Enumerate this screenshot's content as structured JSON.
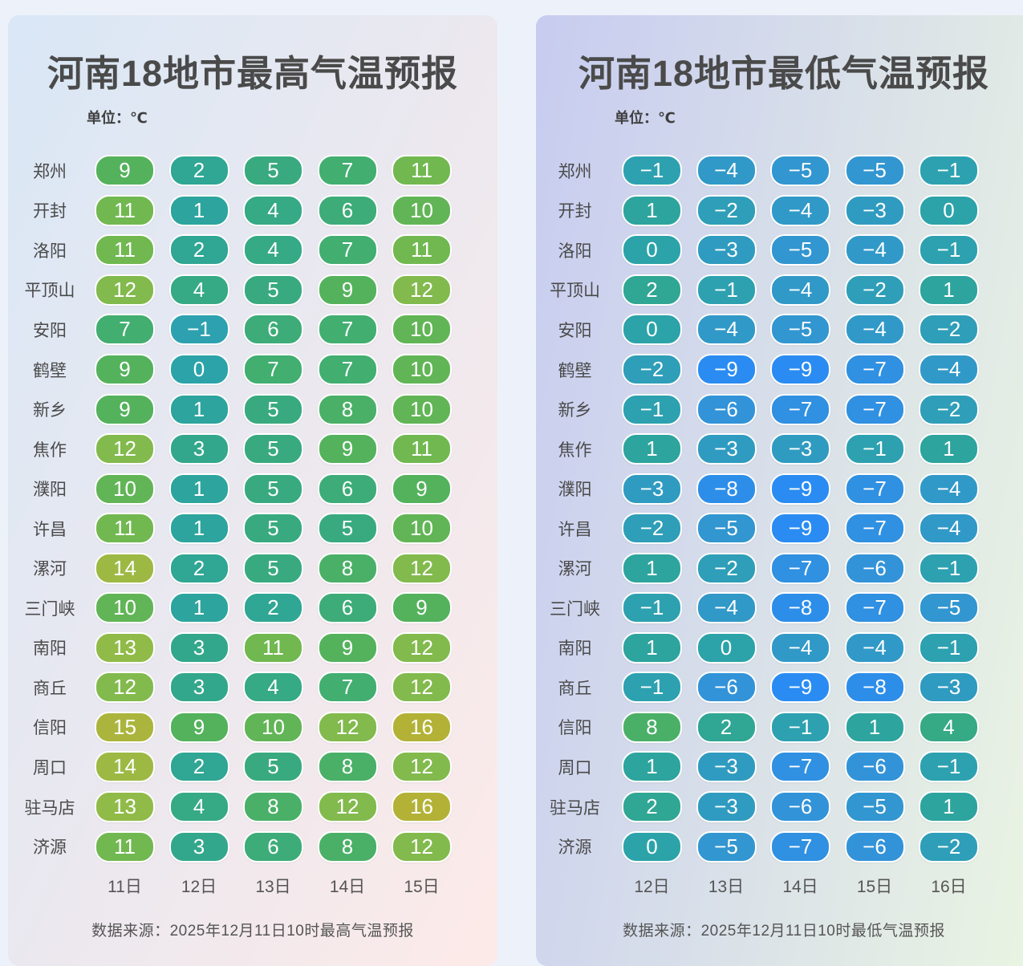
{
  "page_background": "#edf2fa",
  "text_colors": {
    "title": "#4a4a4a",
    "city_label": "#4a4a4a",
    "column_header": "#555555",
    "source": "#555555",
    "cell_value": "#ffffff"
  },
  "chart_data": [
    {
      "type": "heatmap",
      "title": "河南18地市最高气温预报",
      "unit_label": "单位：℃",
      "categories": [
        "11日",
        "12日",
        "13日",
        "14日",
        "15日"
      ],
      "series": [
        {
          "name": "郑州",
          "values": [
            9,
            2,
            5,
            7,
            11
          ]
        },
        {
          "name": "开封",
          "values": [
            11,
            1,
            4,
            6,
            10
          ]
        },
        {
          "name": "洛阳",
          "values": [
            11,
            2,
            4,
            7,
            11
          ]
        },
        {
          "name": "平顶山",
          "values": [
            12,
            4,
            5,
            9,
            12
          ]
        },
        {
          "name": "安阳",
          "values": [
            7,
            -1,
            6,
            7,
            10
          ]
        },
        {
          "name": "鹤壁",
          "values": [
            9,
            0,
            7,
            7,
            10
          ]
        },
        {
          "name": "新乡",
          "values": [
            9,
            1,
            5,
            8,
            10
          ]
        },
        {
          "name": "焦作",
          "values": [
            12,
            3,
            5,
            9,
            11
          ]
        },
        {
          "name": "濮阳",
          "values": [
            10,
            1,
            5,
            6,
            9
          ]
        },
        {
          "name": "许昌",
          "values": [
            11,
            1,
            5,
            5,
            10
          ]
        },
        {
          "name": "漯河",
          "values": [
            14,
            2,
            5,
            8,
            12
          ]
        },
        {
          "name": "三门峡",
          "values": [
            10,
            1,
            2,
            6,
            9
          ]
        },
        {
          "name": "南阳",
          "values": [
            13,
            3,
            11,
            9,
            12
          ]
        },
        {
          "name": "商丘",
          "values": [
            12,
            3,
            4,
            7,
            12
          ]
        },
        {
          "name": "信阳",
          "values": [
            15,
            9,
            10,
            12,
            16
          ]
        },
        {
          "name": "周口",
          "values": [
            14,
            2,
            5,
            8,
            12
          ]
        },
        {
          "name": "驻马店",
          "values": [
            13,
            4,
            8,
            12,
            16
          ]
        },
        {
          "name": "济源",
          "values": [
            11,
            3,
            6,
            8,
            12
          ]
        }
      ],
      "source": "数据来源：2025年12月11日10时最高气温预报",
      "gradient": {
        "angle": "115deg",
        "from": "#d9e7f6",
        "to": "#fdeae8"
      }
    },
    {
      "type": "heatmap",
      "title": "河南18地市最低气温预报",
      "unit_label": "单位：℃",
      "categories": [
        "12日",
        "13日",
        "14日",
        "15日",
        "16日"
      ],
      "series": [
        {
          "name": "郑州",
          "values": [
            -1,
            -4,
            -5,
            -5,
            -1
          ]
        },
        {
          "name": "开封",
          "values": [
            1,
            -2,
            -4,
            -3,
            0
          ]
        },
        {
          "name": "洛阳",
          "values": [
            0,
            -3,
            -5,
            -4,
            -1
          ]
        },
        {
          "name": "平顶山",
          "values": [
            2,
            -1,
            -4,
            -2,
            1
          ]
        },
        {
          "name": "安阳",
          "values": [
            0,
            -4,
            -5,
            -4,
            -2
          ]
        },
        {
          "name": "鹤壁",
          "values": [
            -2,
            -9,
            -9,
            -7,
            -4
          ]
        },
        {
          "name": "新乡",
          "values": [
            -1,
            -6,
            -7,
            -7,
            -2
          ]
        },
        {
          "name": "焦作",
          "values": [
            1,
            -3,
            -3,
            -1,
            1
          ]
        },
        {
          "name": "濮阳",
          "values": [
            -3,
            -8,
            -9,
            -7,
            -4
          ]
        },
        {
          "name": "许昌",
          "values": [
            -2,
            -5,
            -9,
            -7,
            -4
          ]
        },
        {
          "name": "漯河",
          "values": [
            1,
            -2,
            -7,
            -6,
            -1
          ]
        },
        {
          "name": "三门峡",
          "values": [
            -1,
            -4,
            -8,
            -7,
            -5
          ]
        },
        {
          "name": "南阳",
          "values": [
            1,
            0,
            -4,
            -4,
            -1
          ]
        },
        {
          "name": "商丘",
          "values": [
            -1,
            -6,
            -9,
            -8,
            -3
          ]
        },
        {
          "name": "信阳",
          "values": [
            8,
            2,
            -1,
            1,
            4
          ]
        },
        {
          "name": "周口",
          "values": [
            1,
            -3,
            -7,
            -6,
            -1
          ]
        },
        {
          "name": "驻马店",
          "values": [
            2,
            -3,
            -6,
            -5,
            1
          ]
        },
        {
          "name": "济源",
          "values": [
            0,
            -5,
            -7,
            -6,
            -2
          ]
        }
      ],
      "source": "数据来源：2025年12月11日10时最低气温预报",
      "gradient": {
        "angle": "100deg",
        "from": "#c7ccf0",
        "to": "#eaf4e2"
      }
    }
  ],
  "color_scale": {
    "-9": "#2a8cf2",
    "-8": "#2d8eea",
    "-7": "#3090e1",
    "-6": "#3293d9",
    "-5": "#3296d0",
    "-4": "#3199c8",
    "-3": "#309bc0",
    "-2": "#2f9eb8",
    "-1": "#2da1b0",
    "0": "#2ba3a9",
    "1": "#2da49e",
    "2": "#30a694",
    "3": "#33a78c",
    "4": "#36a985",
    "5": "#39aa7f",
    "6": "#3dac78",
    "7": "#42ae70",
    "8": "#4ab067",
    "9": "#54b25d",
    "10": "#62b556",
    "11": "#71b851",
    "12": "#82ba4d",
    "13": "#90bb48",
    "14": "#9db944",
    "15": "#abb53d",
    "16": "#b3b237"
  }
}
